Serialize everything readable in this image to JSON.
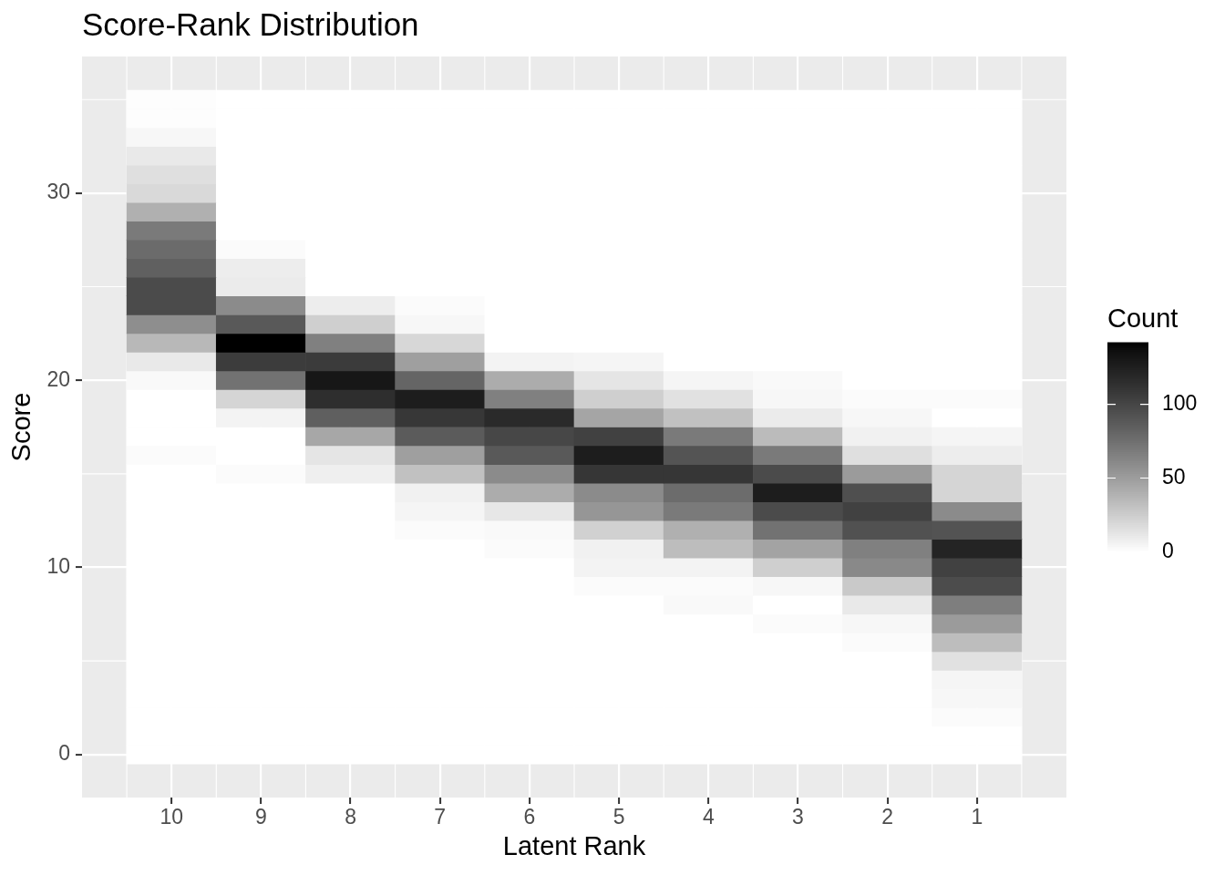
{
  "chart_data": {
    "type": "heatmap",
    "title": "Score-Rank Distribution",
    "xlabel": "Latent Rank",
    "ylabel": "Score",
    "clabel": "Count",
    "categories": [
      "10",
      "9",
      "8",
      "7",
      "6",
      "5",
      "4",
      "3",
      "2",
      "1"
    ],
    "y_categories": [
      null,
      null,
      null,
      null,
      null,
      "30",
      null,
      null,
      null,
      null,
      null,
      null,
      null,
      null,
      null,
      "20",
      null,
      null,
      null,
      null,
      null,
      null,
      null,
      null,
      null,
      "10",
      null,
      null,
      null,
      null,
      null,
      null,
      null,
      null,
      null,
      "0"
    ],
    "cells": [
      [
        1,
        0,
        0,
        0,
        0,
        0,
        0,
        0,
        0,
        0
      ],
      [
        1,
        0,
        0,
        0,
        0,
        0,
        0,
        0,
        0,
        0
      ],
      [
        4,
        0,
        0,
        0,
        0,
        0,
        0,
        0,
        0,
        0
      ],
      [
        11,
        0,
        0,
        0,
        0,
        0,
        0,
        0,
        0,
        0
      ],
      [
        16,
        0,
        0,
        0,
        0,
        0,
        0,
        0,
        0,
        0
      ],
      [
        19,
        0,
        0,
        0,
        0,
        0,
        0,
        0,
        0,
        0
      ],
      [
        40,
        0,
        0,
        0,
        0,
        0,
        0,
        0,
        0,
        0
      ],
      [
        69,
        0,
        0,
        0,
        0,
        0,
        0,
        0,
        0,
        0
      ],
      [
        78,
        2,
        0,
        0,
        0,
        0,
        0,
        0,
        0,
        0
      ],
      [
        84,
        9,
        0,
        0,
        0,
        0,
        0,
        0,
        0,
        0
      ],
      [
        97,
        10,
        0,
        0,
        0,
        0,
        0,
        0,
        0,
        0
      ],
      [
        97,
        60,
        9,
        2,
        0,
        0,
        0,
        0,
        0,
        0
      ],
      [
        58,
        88,
        24,
        4,
        0,
        0,
        0,
        0,
        0,
        0
      ],
      [
        36,
        142,
        66,
        20,
        0,
        0,
        0,
        0,
        0,
        0
      ],
      [
        11,
        106,
        107,
        49,
        6,
        5,
        0,
        0,
        0,
        0
      ],
      [
        3,
        74,
        131,
        81,
        42,
        13,
        5,
        3,
        0,
        0
      ],
      [
        0,
        21,
        115,
        127,
        66,
        24,
        15,
        4,
        2,
        2
      ],
      [
        0,
        6,
        85,
        109,
        118,
        46,
        31,
        10,
        4,
        0
      ],
      [
        0,
        0,
        45,
        87,
        99,
        103,
        69,
        34,
        7,
        5
      ],
      [
        2,
        0,
        13,
        49,
        88,
        127,
        91,
        69,
        16,
        9
      ],
      [
        0,
        2,
        8,
        31,
        60,
        110,
        110,
        97,
        51,
        21
      ],
      [
        0,
        0,
        0,
        7,
        42,
        60,
        77,
        127,
        94,
        21
      ],
      [
        0,
        0,
        0,
        5,
        12,
        54,
        69,
        97,
        103,
        60
      ],
      [
        0,
        0,
        0,
        2,
        3,
        23,
        40,
        74,
        93,
        92
      ],
      [
        0,
        0,
        0,
        0,
        2,
        7,
        33,
        47,
        66,
        122
      ],
      [
        0,
        0,
        0,
        0,
        0,
        6,
        6,
        24,
        61,
        103
      ],
      [
        0,
        0,
        0,
        0,
        0,
        2,
        2,
        4,
        27,
        96
      ],
      [
        0,
        0,
        0,
        0,
        0,
        0,
        3,
        0,
        11,
        67
      ],
      [
        0,
        0,
        0,
        0,
        0,
        0,
        0,
        2,
        4,
        51
      ],
      [
        0,
        0,
        0,
        0,
        0,
        0,
        0,
        0,
        2,
        33
      ],
      [
        0,
        0,
        0,
        0,
        0,
        0,
        0,
        0,
        0,
        15
      ],
      [
        0,
        0,
        0,
        0,
        0,
        0,
        0,
        0,
        0,
        5
      ],
      [
        0,
        0,
        0,
        0,
        0,
        0,
        0,
        0,
        0,
        4
      ],
      [
        0,
        0,
        0,
        0,
        0,
        0,
        0,
        0,
        0,
        2
      ],
      [
        0,
        0,
        0,
        0,
        0,
        0,
        0,
        0,
        0,
        0
      ],
      [
        0,
        0,
        0,
        0,
        0,
        0,
        0,
        0,
        0,
        0
      ]
    ],
    "clim": [
      0,
      142
    ],
    "cticks": [
      0,
      50,
      100
    ],
    "grid": true
  }
}
